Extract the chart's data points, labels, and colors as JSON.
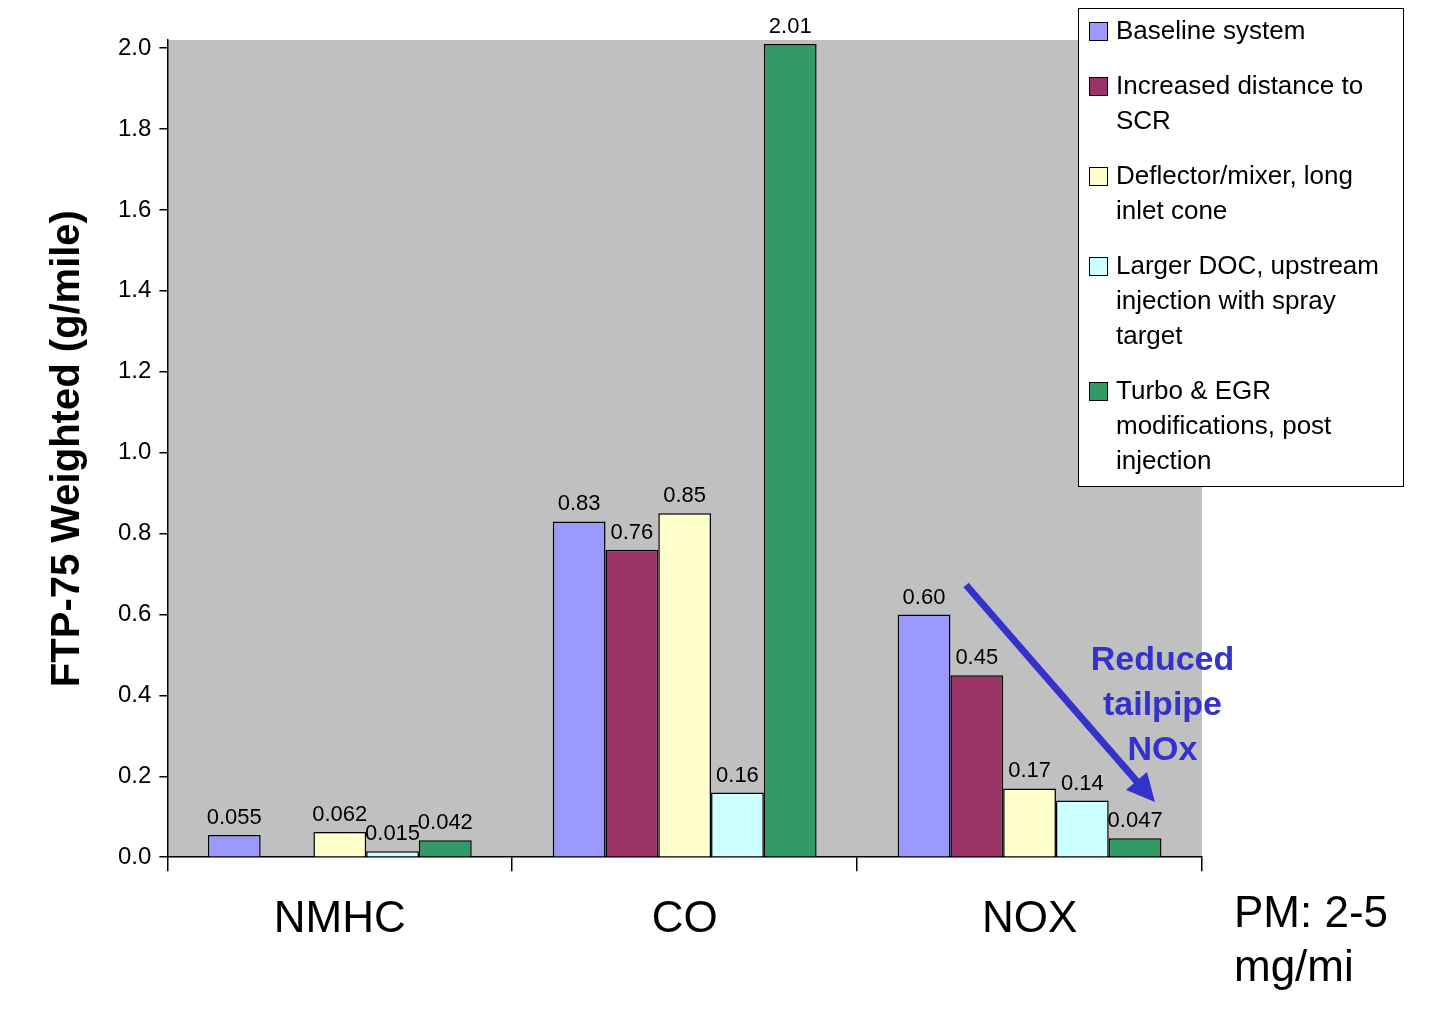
{
  "chart_data": {
    "type": "bar",
    "ylabel": "FTP-75 Weighted (g/mile)",
    "categories": [
      "NMHC",
      "CO",
      "NOX"
    ],
    "series": [
      {
        "name": "Baseline system",
        "color": "#9999ff",
        "values": [
          0.055,
          0.83,
          0.6
        ],
        "value_labels": [
          "0.055",
          "0.83",
          "0.60"
        ]
      },
      {
        "name": "Increased distance to SCR",
        "color": "#993366",
        "values": [
          null,
          0.76,
          0.45
        ],
        "value_labels": [
          null,
          "0.76",
          "0.45"
        ]
      },
      {
        "name": "Deflector/mixer, long inlet cone",
        "color": "#ffffcc",
        "values": [
          0.062,
          0.85,
          0.17
        ],
        "value_labels": [
          "0.062",
          "0.85",
          "0.17"
        ]
      },
      {
        "name": "Larger DOC, upstream injection with spray target",
        "color": "#ccffff",
        "values": [
          0.015,
          0.16,
          0.14
        ],
        "value_labels": [
          "0.015",
          "0.16",
          "0.14"
        ]
      },
      {
        "name": "Turbo & EGR modifications, post injection",
        "color": "#339966",
        "values": [
          0.042,
          2.01,
          0.047
        ],
        "value_labels": [
          "0.042",
          "2.01",
          "0.047"
        ]
      }
    ],
    "ylim": [
      0,
      2.02
    ],
    "yticks": [
      {
        "value": 0,
        "label": "0.0"
      },
      0.2,
      0.4,
      0.6,
      0.8,
      {
        "value": 1.0,
        "label": "1.0"
      },
      1.2,
      1.4,
      1.6,
      1.8,
      {
        "value": 2.0,
        "label": "2.0"
      }
    ],
    "grid": false,
    "legend": "top right",
    "annotations": [
      "Reduced tailpipe NOx",
      "PM: 2-5 mg/mi"
    ]
  }
}
